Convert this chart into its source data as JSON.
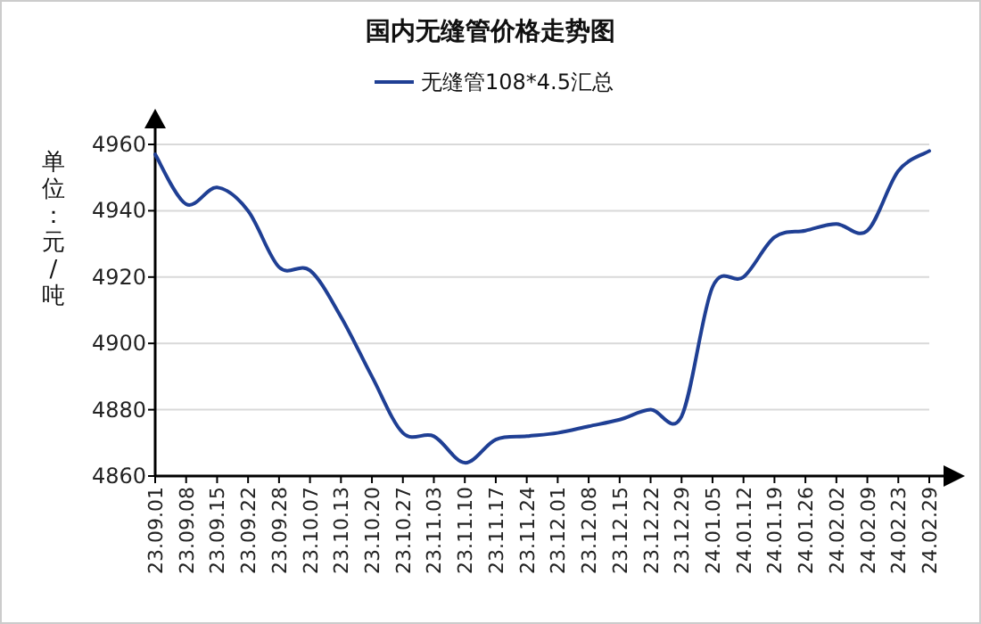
{
  "chart_data": {
    "type": "line",
    "title": "国内无缝管价格走势图",
    "ylabel": "单位：元/吨",
    "categories": [
      "23.09.01",
      "23.09.08",
      "23.09.15",
      "23.09.22",
      "23.09.28",
      "23.10.07",
      "23.10.13",
      "23.10.20",
      "23.10.27",
      "23.11.03",
      "23.11.10",
      "23.11.17",
      "23.11.24",
      "23.12.01",
      "23.12.08",
      "23.12.15",
      "23.12.22",
      "23.12.29",
      "24.01.05",
      "24.01.12",
      "24.01.19",
      "24.01.26",
      "24.02.02",
      "24.02.09",
      "24.02.23",
      "24.02.29"
    ],
    "series": [
      {
        "name": "无缝管108*4.5汇总",
        "color": "#1f3f94",
        "values": [
          4957,
          4942,
          4947,
          4940,
          4923,
          4922,
          4908,
          4890,
          4873,
          4872,
          4864,
          4871,
          4872,
          4873,
          4875,
          4877,
          4880,
          4878,
          4917,
          4920,
          4932,
          4934,
          4936,
          4934,
          4952,
          4958
        ]
      }
    ],
    "ylim": [
      4860,
      4960
    ],
    "yticks": [
      4860,
      4880,
      4900,
      4920,
      4940,
      4960
    ],
    "grid": "y",
    "legend": "top",
    "marker": "none",
    "line_style": "solid"
  }
}
